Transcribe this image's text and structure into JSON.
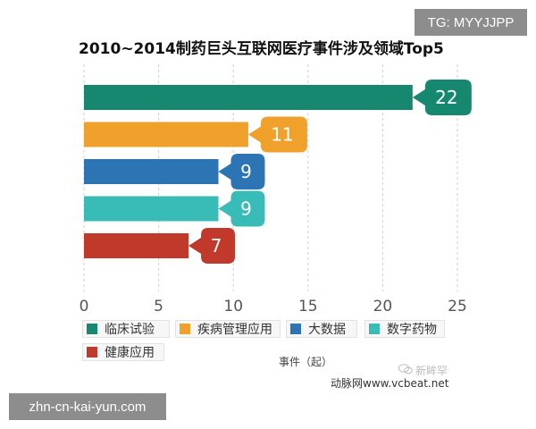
{
  "overlay": {
    "top_tag": "TG: MYYJJPP",
    "bottom_tag": "zhn-cn-kai-yun.com"
  },
  "footer": {
    "source": "动脉网www.vcbeat.net",
    "watermark": "新眸罕"
  },
  "colors": {
    "clinical": "#16886f",
    "disease": "#f0a12b",
    "bigdata": "#2d74b5",
    "digital": "#39bcb8",
    "health": "#c0392b"
  },
  "chart_data": {
    "type": "bar",
    "orientation": "horizontal",
    "title": "2010~2014制药巨头互联网医疗事件涉及领域Top5",
    "xlabel": "事件（起）",
    "ylabel": "",
    "xlim": [
      0,
      25
    ],
    "xticks": [
      0,
      5,
      10,
      15,
      20,
      25
    ],
    "grid": "vertical-dashed",
    "legend_position": "bottom",
    "categories": [
      "临床试验",
      "疾病管理应用",
      "大数据",
      "数字药物",
      "健康应用"
    ],
    "values": [
      22,
      11,
      9,
      9,
      7
    ],
    "colors": [
      "#16886f",
      "#f0a12b",
      "#2d74b5",
      "#39bcb8",
      "#c0392b"
    ]
  }
}
